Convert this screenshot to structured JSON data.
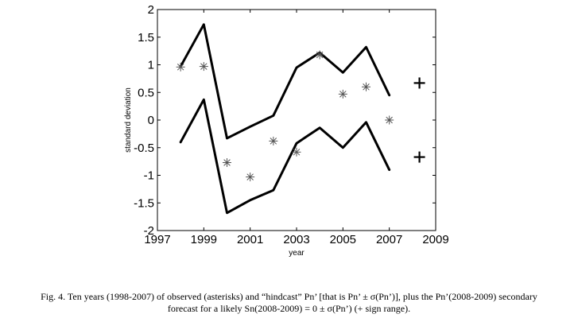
{
  "chart_data": {
    "type": "line",
    "xlabel": "year",
    "ylabel": "standard deviation",
    "xlim": [
      1997,
      2009
    ],
    "ylim": [
      -2,
      2
    ],
    "xticks": [
      1997,
      1999,
      2001,
      2003,
      2005,
      2007,
      2009
    ],
    "yticks": [
      -2,
      -1.5,
      -1,
      -0.5,
      0,
      0.5,
      1,
      1.5,
      2
    ],
    "xtick_labels": [
      "1997",
      "1999",
      "2001",
      "2003",
      "2005",
      "2007",
      "2009"
    ],
    "ytick_labels": [
      "-2",
      "-1.5",
      "-1",
      "-0.5",
      "0",
      "0.5",
      "1",
      "1.5",
      "2"
    ],
    "grid": false,
    "series": [
      {
        "kind": "line",
        "color": "#000000",
        "x": [
          1998,
          1999,
          2000,
          2001,
          2002,
          2003,
          2004,
          2005,
          2006,
          2007
        ],
        "y": [
          0.97,
          1.73,
          -0.33,
          -0.12,
          0.08,
          0.95,
          1.22,
          0.86,
          1.32,
          0.45
        ]
      },
      {
        "kind": "line",
        "color": "#000000",
        "x": [
          1998,
          1999,
          2000,
          2001,
          2002,
          2003,
          2004,
          2005,
          2006,
          2007
        ],
        "y": [
          -0.4,
          0.37,
          -1.68,
          -1.45,
          -1.27,
          -0.42,
          -0.14,
          -0.5,
          -0.04,
          -0.9
        ]
      },
      {
        "kind": "scatter",
        "marker": "asterisk",
        "color": "#555555",
        "x": [
          1998,
          1999,
          2000,
          2001,
          2002,
          2003,
          2004,
          2005,
          2006,
          2007
        ],
        "y": [
          0.96,
          0.97,
          -0.77,
          -1.03,
          -0.38,
          -0.58,
          1.18,
          0.47,
          0.6,
          0.0
        ]
      },
      {
        "kind": "scatter",
        "marker": "plus",
        "color": "#000000",
        "x": [
          2008.3,
          2008.3
        ],
        "y": [
          0.67,
          -0.67
        ]
      }
    ]
  },
  "caption": {
    "line1": "Fig. 4. Ten years (1998-2007) of observed (asterisks) and “hindcast” Pn’ [that is Pn’ ± σ(Pn’)], plus the Pn’(2008-2009) secondary",
    "line2": "forecast for a likely Sn(2008-2009) = 0 ± σ(Pn’) (+ sign range)."
  }
}
